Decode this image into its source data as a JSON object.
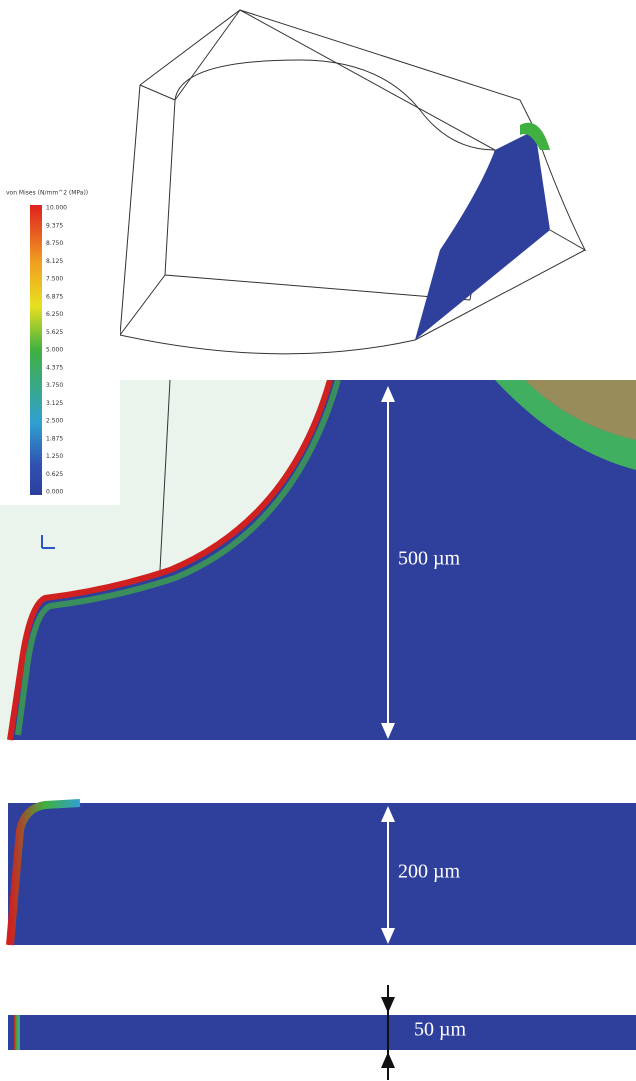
{
  "legend": {
    "title": "von Mises (N/mm^2 (MPa))",
    "ticks": [
      "10.000",
      "9.375",
      "8.750",
      "8.125",
      "7.500",
      "6.875",
      "6.250",
      "5.625",
      "5.000",
      "4.375",
      "3.750",
      "3.125",
      "2.500",
      "1.875",
      "1.250",
      "0.625",
      "0.000"
    ]
  },
  "dimensions": [
    "500 µm",
    "200 µm",
    "50 µm"
  ]
}
